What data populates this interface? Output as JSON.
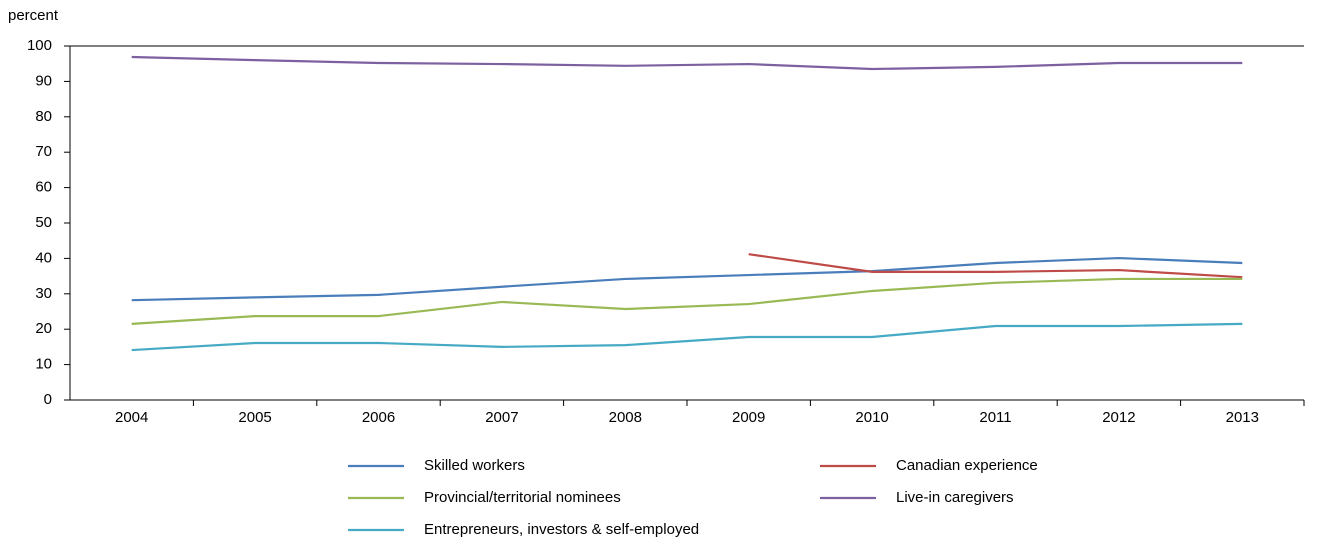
{
  "chart_data": {
    "type": "line",
    "y_axis_label": "percent",
    "categories": [
      "2004",
      "2005",
      "2006",
      "2007",
      "2008",
      "2009",
      "2010",
      "2011",
      "2012",
      "2013"
    ],
    "series": [
      {
        "name": "Skilled workers",
        "color": "#4a7ebb",
        "values": [
          28.2,
          29,
          29.7,
          32,
          34.2,
          35.3,
          36.4,
          38.7,
          40.1,
          38.7
        ]
      },
      {
        "name": "Canadian experience",
        "color": "#be4b48",
        "values": [
          null,
          null,
          null,
          null,
          null,
          41.2,
          36.2,
          36.2,
          36.7,
          34.7
        ]
      },
      {
        "name": "Provincial/territorial nominees",
        "color": "#98b954",
        "values": [
          21.5,
          23.7,
          23.7,
          27.7,
          25.7,
          27.1,
          30.8,
          33.1,
          34.2,
          34.2
        ]
      },
      {
        "name": "Live-in caregivers",
        "color": "#7d60a0",
        "values": [
          96.9,
          96,
          95.2,
          94.9,
          94.4,
          94.9,
          93.5,
          94.1,
          95.2,
          95.2
        ]
      },
      {
        "name": "Entrepreneurs, investors & self-employed",
        "color": "#46aac5",
        "values": [
          14.1,
          16.1,
          16.1,
          15,
          15.5,
          17.8,
          17.8,
          20.9,
          20.9,
          21.5
        ]
      }
    ],
    "ylim": [
      0,
      100
    ],
    "yticks": [
      0,
      10,
      20,
      30,
      40,
      50,
      60,
      70,
      80,
      90,
      100
    ],
    "grid": false,
    "legend": "bottom"
  }
}
